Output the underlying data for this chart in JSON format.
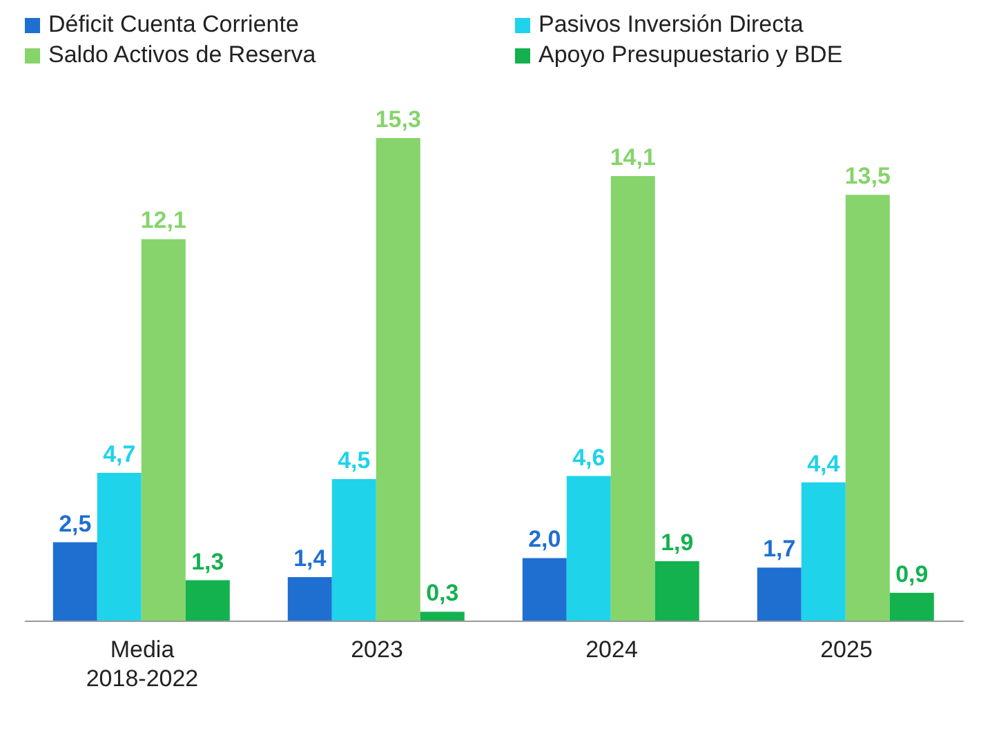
{
  "chart_data": {
    "type": "bar",
    "categories": [
      "Media 2018-2022",
      "2023",
      "2024",
      "2025"
    ],
    "legend": "top",
    "series": [
      {
        "name": "Déficit Cuenta Corriente",
        "color": "#1f6fd1",
        "values": [
          2.5,
          1.4,
          2.0,
          1.7
        ],
        "value_labels": [
          "2,5",
          "1,4",
          "2,0",
          "1,7"
        ]
      },
      {
        "name": "Pasivos Inversión Directa",
        "color": "#1fd3ea",
        "values": [
          4.7,
          4.5,
          4.6,
          4.4
        ],
        "value_labels": [
          "4,7",
          "4,5",
          "4,6",
          "4,4"
        ]
      },
      {
        "name": "Saldo Activos de Reserva",
        "color": "#86d46b",
        "values": [
          12.1,
          15.3,
          14.1,
          13.5
        ],
        "value_labels": [
          "12,1",
          "15,3",
          "14,1",
          "13,5"
        ]
      },
      {
        "name": "Apoyo Presupuestario y BDE",
        "color": "#14b14f",
        "values": [
          1.3,
          0.3,
          1.9,
          0.9
        ],
        "value_labels": [
          "1,3",
          "0,3",
          "1,9",
          "0,9"
        ]
      }
    ]
  }
}
